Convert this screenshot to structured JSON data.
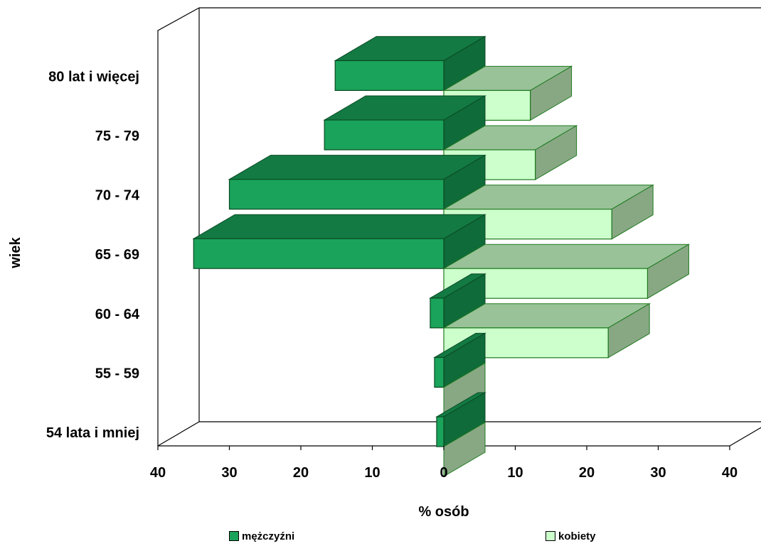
{
  "chart_data": {
    "type": "bar",
    "orientation": "horizontal-population-pyramid",
    "categories": [
      "54 lata i mniej",
      "55 - 59",
      "60 - 64",
      "65 - 69",
      "70 - 74",
      "75 - 79",
      "80 lat i więcej"
    ],
    "series": [
      {
        "name": "mężczyźni",
        "values": [
          1,
          1.3,
          1.9,
          35,
          30,
          16.7,
          15.2
        ]
      },
      {
        "name": "kobiety",
        "values": [
          0,
          0,
          23,
          28.5,
          23.5,
          12.8,
          12.1
        ]
      }
    ],
    "xlabel": "% osób",
    "ylabel": "wiek",
    "xlim": [
      -40,
      40
    ],
    "x_ticks": [
      "40",
      "30",
      "20",
      "10",
      "0",
      "10",
      "20",
      "30",
      "40"
    ],
    "legend_position": "bottom",
    "colors": {
      "men_front": "#1aa35a",
      "men_top": "#137a43",
      "men_side": "#0f6b39",
      "men_edge": "#0a4a23",
      "women_front": "#ccffcc",
      "women_top": "#99c299",
      "women_side": "#88a884",
      "women_edge": "#1f7a1f"
    }
  },
  "legend": {
    "men_label": "mężczyźni",
    "women_label": "kobiety"
  }
}
